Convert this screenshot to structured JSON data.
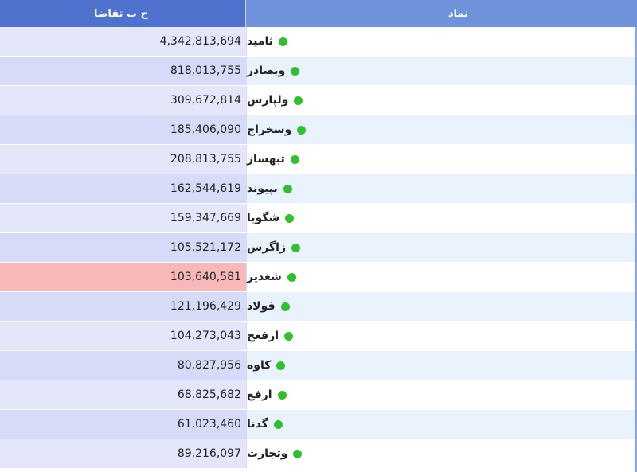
{
  "header": {
    "value_label": "ح ب تقاضا",
    "symbol_label": "نماد"
  },
  "status_color": "#2fbf2f",
  "highlight_color": "#f8b8b7",
  "rows": [
    {
      "symbol": "ثامید",
      "value": "4,342,813,694"
    },
    {
      "symbol": "وبصادر",
      "value": "818,013,755"
    },
    {
      "symbol": "ولپارس",
      "value": "309,672,814"
    },
    {
      "symbol": "وسخراج",
      "value": "185,406,090"
    },
    {
      "symbol": "ثبهساز",
      "value": "208,813,755"
    },
    {
      "symbol": "بپیوند",
      "value": "162,544,619"
    },
    {
      "symbol": "شگویا",
      "value": "159,347,669"
    },
    {
      "symbol": "زاگرس",
      "value": "105,521,172"
    },
    {
      "symbol": "شغدیر",
      "value": "103,640,581",
      "highlighted": true
    },
    {
      "symbol": "فولاد",
      "value": "121,196,429"
    },
    {
      "symbol": "ارفعح",
      "value": "104,273,043"
    },
    {
      "symbol": "کاوه",
      "value": "80,827,956"
    },
    {
      "symbol": "ارفع",
      "value": "68,825,682"
    },
    {
      "symbol": "گدنا",
      "value": "61,023,460"
    },
    {
      "symbol": "وتجارت",
      "value": "89,216,097"
    }
  ]
}
